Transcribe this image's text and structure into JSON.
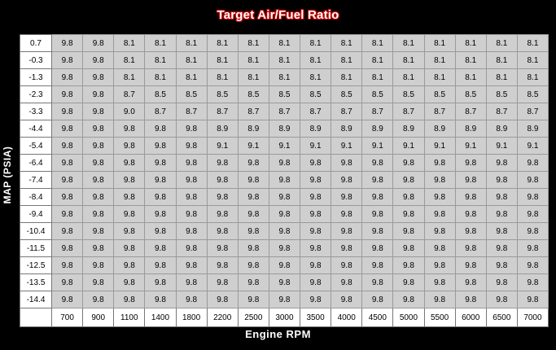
{
  "title": "Target Air/Fuel Ratio",
  "y_axis_label": "MAP (PSIA)",
  "x_axis_label": "Engine RPM",
  "map_values": [
    "0.7",
    "-0.3",
    "-1.3",
    "-2.3",
    "-3.3",
    "-4.4",
    "-5.4",
    "-6.4",
    "-7.4",
    "-8.4",
    "-9.4",
    "-10.4",
    "-11.5",
    "-12.5",
    "-13.5",
    "-14.4"
  ],
  "rpm_values": [
    "700",
    "900",
    "1100",
    "1400",
    "1800",
    "2200",
    "2500",
    "3000",
    "3500",
    "4000",
    "4500",
    "5000",
    "5500",
    "6000",
    "6500",
    "7000"
  ],
  "table": [
    [
      "9.8",
      "9.8",
      "8.1",
      "8.1",
      "8.1",
      "8.1",
      "8.1",
      "8.1",
      "8.1",
      "8.1",
      "8.1",
      "8.1",
      "8.1",
      "8.1",
      "8.1",
      "8.1"
    ],
    [
      "9.8",
      "9.8",
      "8.1",
      "8.1",
      "8.1",
      "8.1",
      "8.1",
      "8.1",
      "8.1",
      "8.1",
      "8.1",
      "8.1",
      "8.1",
      "8.1",
      "8.1",
      "8.1"
    ],
    [
      "9.8",
      "9.8",
      "8.1",
      "8.1",
      "8.1",
      "8.1",
      "8.1",
      "8.1",
      "8.1",
      "8.1",
      "8.1",
      "8.1",
      "8.1",
      "8.1",
      "8.1",
      "8.1"
    ],
    [
      "9.8",
      "9.8",
      "8.7",
      "8.5",
      "8.5",
      "8.5",
      "8.5",
      "8.5",
      "8.5",
      "8.5",
      "8.5",
      "8.5",
      "8.5",
      "8.5",
      "8.5",
      "8.5"
    ],
    [
      "9.8",
      "9.8",
      "9.0",
      "8.7",
      "8.7",
      "8.7",
      "8.7",
      "8.7",
      "8.7",
      "8.7",
      "8.7",
      "8.7",
      "8.7",
      "8.7",
      "8.7",
      "8.7"
    ],
    [
      "9.8",
      "9.8",
      "9.8",
      "9.8",
      "9.8",
      "8.9",
      "8.9",
      "8.9",
      "8.9",
      "8.9",
      "8.9",
      "8.9",
      "8.9",
      "8.9",
      "8.9",
      "8.9"
    ],
    [
      "9.8",
      "9.8",
      "9.8",
      "9.8",
      "9.8",
      "9.1",
      "9.1",
      "9.1",
      "9.1",
      "9.1",
      "9.1",
      "9.1",
      "9.1",
      "9.1",
      "9.1",
      "9.1"
    ],
    [
      "9.8",
      "9.8",
      "9.8",
      "9.8",
      "9.8",
      "9.8",
      "9.8",
      "9.8",
      "9.8",
      "9.8",
      "9.8",
      "9.8",
      "9.8",
      "9.8",
      "9.8",
      "9.8"
    ],
    [
      "9.8",
      "9.8",
      "9.8",
      "9.8",
      "9.8",
      "9.8",
      "9.8",
      "9.8",
      "9.8",
      "9.8",
      "9.8",
      "9.8",
      "9.8",
      "9.8",
      "9.8",
      "9.8"
    ],
    [
      "9.8",
      "9.8",
      "9.8",
      "9.8",
      "9.8",
      "9.8",
      "9.8",
      "9.8",
      "9.8",
      "9.8",
      "9.8",
      "9.8",
      "9.8",
      "9.8",
      "9.8",
      "9.8"
    ],
    [
      "9.8",
      "9.8",
      "9.8",
      "9.8",
      "9.8",
      "9.8",
      "9.8",
      "9.8",
      "9.8",
      "9.8",
      "9.8",
      "9.8",
      "9.8",
      "9.8",
      "9.8",
      "9.8"
    ],
    [
      "9.8",
      "9.8",
      "9.8",
      "9.8",
      "9.8",
      "9.8",
      "9.8",
      "9.8",
      "9.8",
      "9.8",
      "9.8",
      "9.8",
      "9.8",
      "9.8",
      "9.8",
      "9.8"
    ],
    [
      "9.8",
      "9.8",
      "9.8",
      "9.8",
      "9.8",
      "9.8",
      "9.8",
      "9.8",
      "9.8",
      "9.8",
      "9.8",
      "9.8",
      "9.8",
      "9.8",
      "9.8",
      "9.8"
    ],
    [
      "9.8",
      "9.8",
      "9.8",
      "9.8",
      "9.8",
      "9.8",
      "9.8",
      "9.8",
      "9.8",
      "9.8",
      "9.8",
      "9.8",
      "9.8",
      "9.8",
      "9.8",
      "9.8"
    ],
    [
      "9.8",
      "9.8",
      "9.8",
      "9.8",
      "9.8",
      "9.8",
      "9.8",
      "9.8",
      "9.8",
      "9.8",
      "9.8",
      "9.8",
      "9.8",
      "9.8",
      "9.8",
      "9.8"
    ],
    [
      "9.8",
      "9.8",
      "9.8",
      "9.8",
      "9.8",
      "9.8",
      "9.8",
      "9.8",
      "9.8",
      "9.8",
      "9.8",
      "9.8",
      "9.8",
      "9.8",
      "9.8",
      "9.8"
    ]
  ],
  "colors": {
    "background": "#000000",
    "cell_fill": "#cfcfcf",
    "header_fill": "#ffffff",
    "title_outline": "#c00000"
  }
}
